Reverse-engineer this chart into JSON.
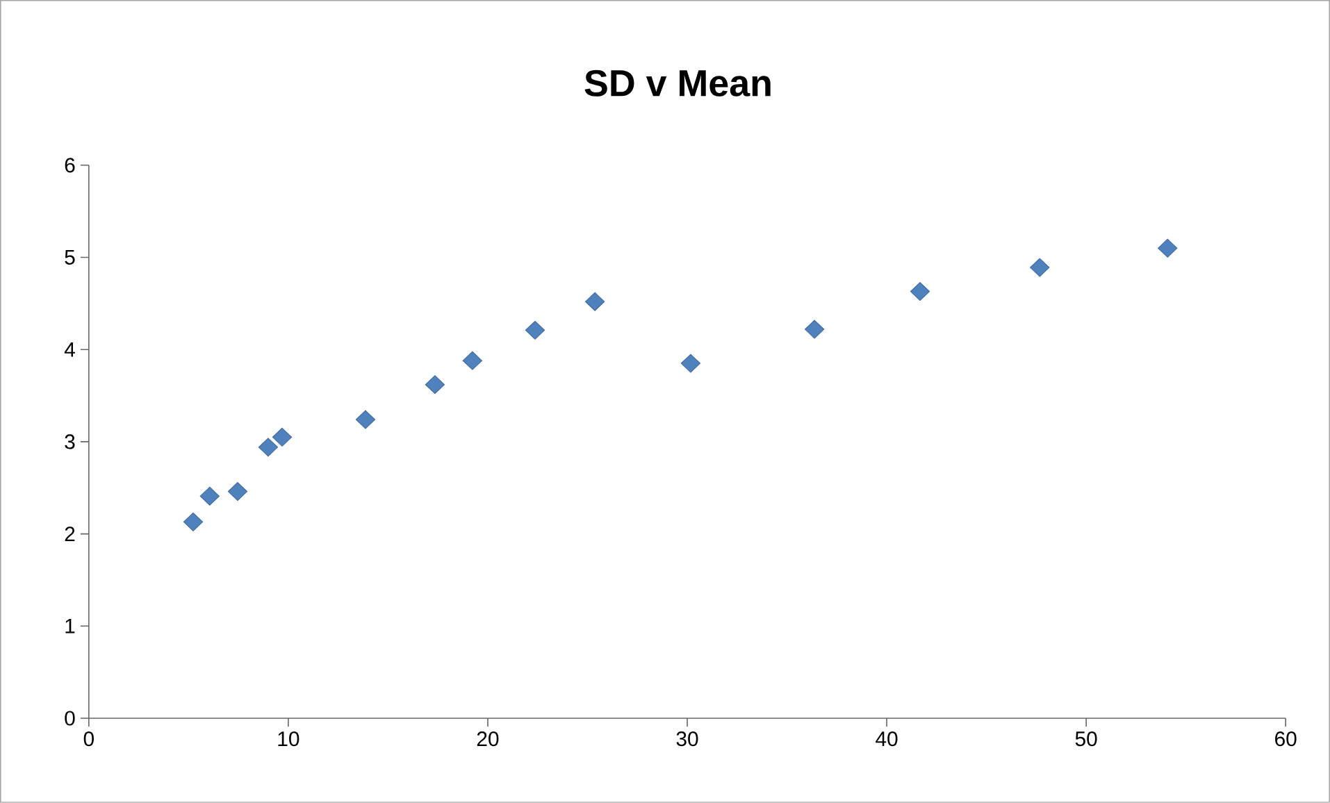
{
  "chart_data": {
    "type": "scatter",
    "title": "SD v Mean",
    "marker": "diamond",
    "color": "#4f81bd",
    "grid": false,
    "x": [
      5.23,
      6.06,
      7.46,
      8.99,
      9.69,
      13.87,
      17.35,
      19.23,
      22.37,
      25.37,
      30.17,
      36.38,
      41.67,
      47.67,
      54.08
    ],
    "values": [
      2.13,
      2.41,
      2.46,
      2.94,
      3.05,
      3.24,
      3.62,
      3.88,
      4.21,
      4.52,
      3.85,
      4.22,
      4.63,
      4.89,
      5.1
    ],
    "xlim": [
      0,
      60
    ],
    "xticks": [
      0,
      10,
      20,
      30,
      40,
      50,
      60
    ],
    "ylim": [
      0,
      6
    ],
    "yticks": [
      0,
      1,
      2,
      3,
      4,
      5,
      6
    ]
  }
}
